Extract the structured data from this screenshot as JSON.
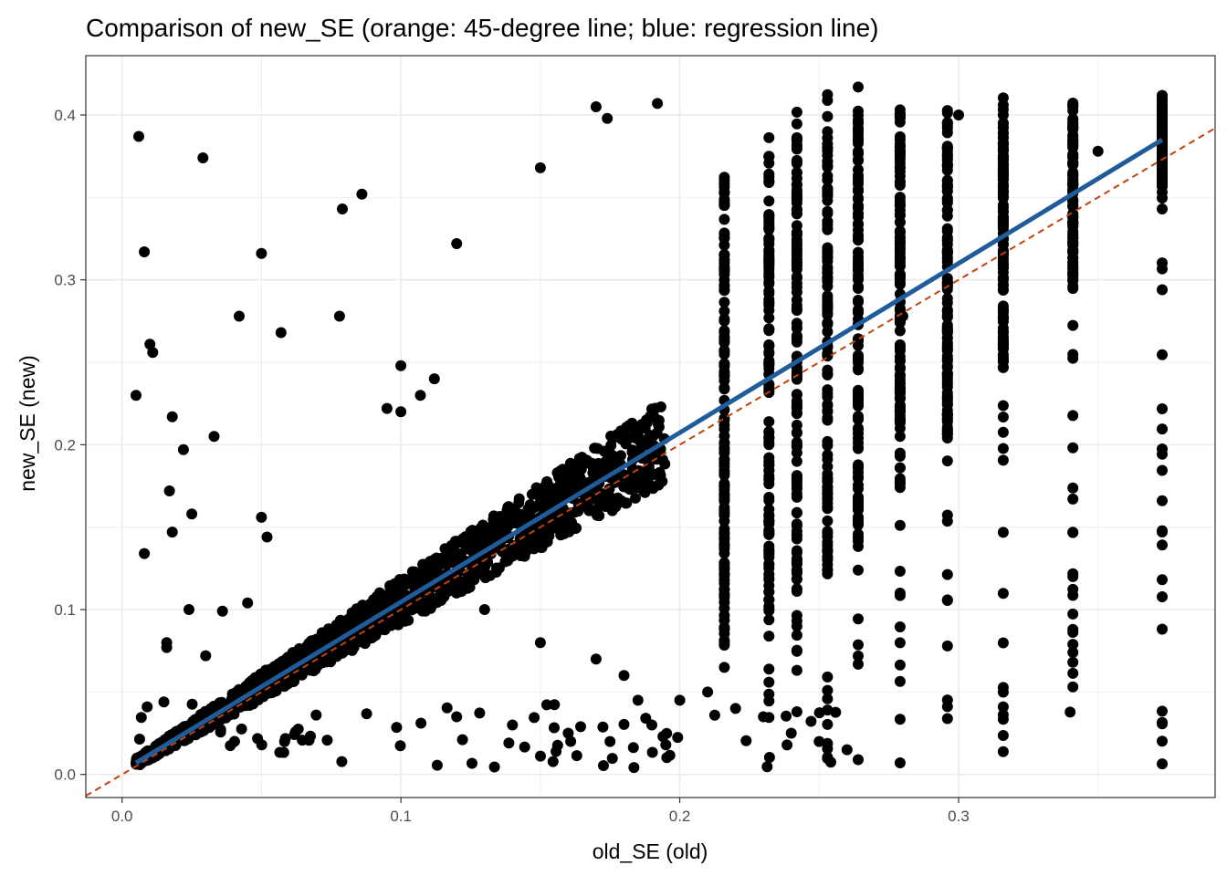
{
  "chart_data": {
    "type": "scatter",
    "title": "Comparison of new_SE (orange: 45-degree line; blue: regression line)",
    "xlabel": "old_SE (old)",
    "ylabel": "new_SE (new)",
    "xlim": [
      -0.013,
      0.392
    ],
    "ylim": [
      -0.014,
      0.436
    ],
    "x_ticks": [
      0.0,
      0.1,
      0.2,
      0.3
    ],
    "x_tick_labels": [
      "0.0",
      "0.1",
      "0.2",
      "0.3"
    ],
    "y_ticks": [
      0.0,
      0.1,
      0.2,
      0.3,
      0.4
    ],
    "y_tick_labels": [
      "0.0",
      "0.1",
      "0.2",
      "0.3",
      "0.4"
    ],
    "grid": true,
    "colors": {
      "points": "#000000",
      "identity_line": "#c2410c",
      "regression_line": "#1f5c99",
      "grid": "#ebebeb",
      "panel_border": "#333333"
    },
    "identity_line": {
      "slope": 1,
      "intercept": 0
    },
    "regression_line": {
      "x_range": [
        0.005,
        0.373
      ],
      "y_range": [
        0.007,
        0.385
      ]
    },
    "columns": {
      "x": [
        0.216,
        0.232,
        0.242,
        0.253,
        0.264,
        0.279,
        0.296,
        0.316,
        0.341,
        0.373
      ],
      "y_range": [
        [
          0.055,
          0.378
        ],
        [
          0.02,
          0.395
        ],
        [
          0.006,
          0.403
        ],
        [
          0.003,
          0.415
        ],
        [
          0.003,
          0.418
        ],
        [
          0.003,
          0.415
        ],
        [
          0.015,
          0.415
        ],
        [
          0.005,
          0.414
        ],
        [
          0.005,
          0.414
        ],
        [
          0.005,
          0.415
        ]
      ]
    },
    "points": [
      [
        0.006,
        0.387
      ],
      [
        0.029,
        0.374
      ],
      [
        0.008,
        0.317
      ],
      [
        0.05,
        0.316
      ],
      [
        0.042,
        0.278
      ],
      [
        0.078,
        0.278
      ],
      [
        0.057,
        0.268
      ],
      [
        0.01,
        0.261
      ],
      [
        0.011,
        0.256
      ],
      [
        0.005,
        0.23
      ],
      [
        0.018,
        0.217
      ],
      [
        0.022,
        0.197
      ],
      [
        0.033,
        0.205
      ],
      [
        0.017,
        0.172
      ],
      [
        0.025,
        0.158
      ],
      [
        0.018,
        0.147
      ],
      [
        0.008,
        0.134
      ],
      [
        0.05,
        0.156
      ],
      [
        0.052,
        0.144
      ],
      [
        0.079,
        0.343
      ],
      [
        0.086,
        0.352
      ],
      [
        0.12,
        0.322
      ],
      [
        0.17,
        0.405
      ],
      [
        0.174,
        0.398
      ],
      [
        0.192,
        0.407
      ],
      [
        0.15,
        0.368
      ],
      [
        0.1,
        0.248
      ],
      [
        0.095,
        0.222
      ],
      [
        0.1,
        0.22
      ],
      [
        0.112,
        0.24
      ],
      [
        0.107,
        0.23
      ],
      [
        0.016,
        0.08
      ],
      [
        0.016,
        0.077
      ],
      [
        0.024,
        0.1
      ],
      [
        0.036,
        0.099
      ],
      [
        0.045,
        0.104
      ],
      [
        0.009,
        0.041
      ],
      [
        0.015,
        0.044
      ],
      [
        0.03,
        0.072
      ],
      [
        0.13,
        0.1
      ],
      [
        0.15,
        0.08
      ],
      [
        0.17,
        0.07
      ],
      [
        0.18,
        0.06
      ],
      [
        0.185,
        0.045
      ],
      [
        0.19,
        0.03
      ],
      [
        0.2,
        0.045
      ],
      [
        0.21,
        0.05
      ],
      [
        0.22,
        0.04
      ],
      [
        0.23,
        0.035
      ],
      [
        0.24,
        0.025
      ],
      [
        0.25,
        0.02
      ],
      [
        0.26,
        0.015
      ],
      [
        0.12,
        0.035
      ],
      [
        0.14,
        0.03
      ],
      [
        0.16,
        0.025
      ],
      [
        0.175,
        0.02
      ],
      [
        0.195,
        0.018
      ],
      [
        0.28,
        0.278
      ],
      [
        0.3,
        0.4
      ],
      [
        0.35,
        0.378
      ],
      [
        0.34,
        0.0378
      ]
    ]
  }
}
